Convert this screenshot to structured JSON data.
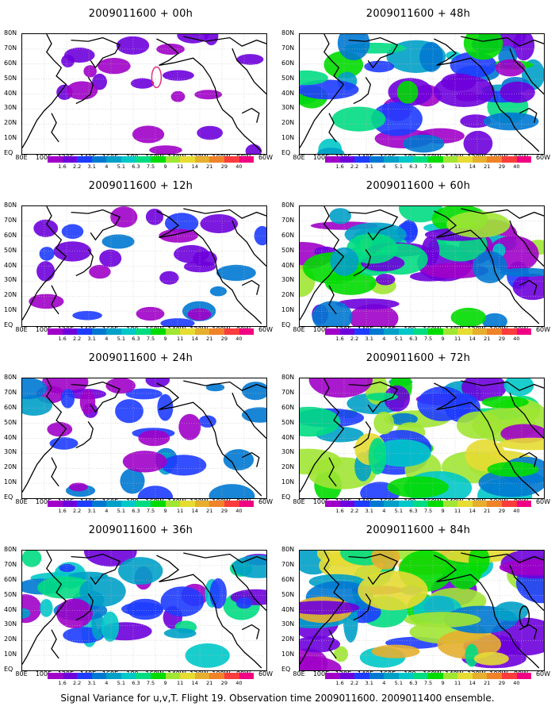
{
  "footer": "Signal Variance for u,v,T. Flight 19. Observation time 2009011600. 2009011400 ensemble.",
  "lat_labels": [
    "80N",
    "70N",
    "60N",
    "50N",
    "40N",
    "30N",
    "20N",
    "10N",
    "EQ"
  ],
  "lon_labels": [
    "80E",
    "100E",
    "120E",
    "140E",
    "160E",
    "180",
    "160W",
    "140W",
    "120W",
    "100W",
    "80W",
    "60W"
  ],
  "colorbar": {
    "labels": [
      "1.6",
      "2.2",
      "3.1",
      "4",
      "5.1",
      "6.3",
      "7.5",
      "9",
      "11",
      "14",
      "21",
      "29",
      "40"
    ],
    "colors": [
      "#a000c8",
      "#6e00dc",
      "#1e3cff",
      "#0078d2",
      "#00a0c8",
      "#00c8c8",
      "#00dc82",
      "#00dc00",
      "#a0e632",
      "#e6dc32",
      "#e6af2d",
      "#f08228",
      "#fa3c3c",
      "#f00082"
    ]
  },
  "panels": [
    {
      "title": "2009011600 + 00h",
      "intensity": 0.05,
      "marker": true
    },
    {
      "title": "2009011600 + 48h",
      "intensity": 0.65,
      "marker": false
    },
    {
      "title": "2009011600 + 12h",
      "intensity": 0.2,
      "marker": false
    },
    {
      "title": "2009011600 + 60h",
      "intensity": 0.75,
      "marker": false
    },
    {
      "title": "2009011600 + 24h",
      "intensity": 0.35,
      "marker": false
    },
    {
      "title": "2009011600 + 72h",
      "intensity": 0.85,
      "marker": false
    },
    {
      "title": "2009011600 + 36h",
      "intensity": 0.5,
      "marker": false
    },
    {
      "title": "2009011600 + 84h",
      "intensity": 0.95,
      "marker": true
    }
  ]
}
